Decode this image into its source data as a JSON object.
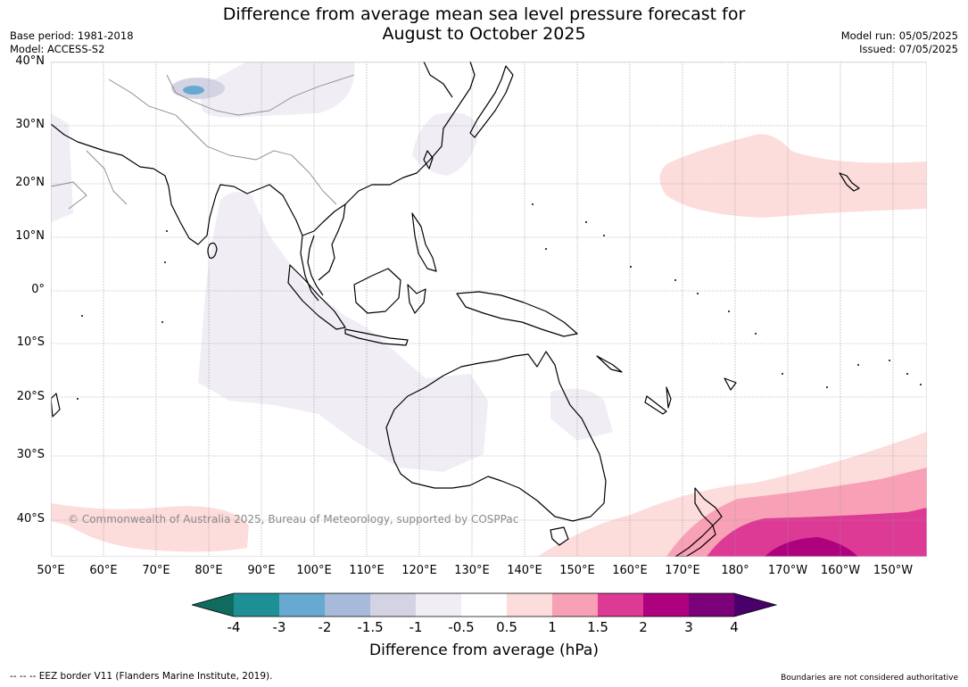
{
  "title_line1": "Difference from average mean sea level pressure forecast for",
  "title_line2": "August to October 2025",
  "base_period": "Base period: 1981-2018",
  "model": "Model: ACCESS-S2",
  "model_run": "Model run: 05/05/2025",
  "issued": "Issued: 07/05/2025",
  "lat_labels": [
    "40°N",
    "30°N",
    "20°N",
    "10°N",
    "0°",
    "10°S",
    "20°S",
    "30°S",
    "40°S"
  ],
  "lon_labels": [
    "50°E",
    "60°E",
    "70°E",
    "80°E",
    "90°E",
    "100°E",
    "110°E",
    "120°E",
    "130°E",
    "140°E",
    "150°E",
    "160°E",
    "170°E",
    "180°",
    "170°W",
    "160°W",
    "150°W"
  ],
  "copyright": "© Commonwealth of Australia 2025, Bureau of Meteorology, supported by COSPPac",
  "colorbar": {
    "ticks": [
      "-4",
      "-3",
      "-2",
      "-1.5",
      "-1",
      "-0.5",
      "0.5",
      "1",
      "1.5",
      "2",
      "3",
      "4"
    ],
    "colors": {
      "below_-4": "#0e6b5e",
      "-4_-3": "#1f8f96",
      "-3_-2": "#67a9d0",
      "-2_-1.5": "#a8bad9",
      "-1.5_-1": "#d3d3e4",
      "-1_-0.5": "#f1edf4",
      "-0.5_0.5": "#ffffff",
      "0.5_1": "#fddcdc",
      "1_1.5": "#f8a0b6",
      "1.5_2": "#dc3a95",
      "2_3": "#ae017e",
      "3_4": "#7a0177",
      "above_4": "#49006a"
    },
    "label": "Difference from average (hPa)"
  },
  "eez_note": "--  --  -- EEZ border V11 (Flanders Marine Institute, 2019).",
  "boundaries_note": "Boundaries are not considered authoritative"
}
